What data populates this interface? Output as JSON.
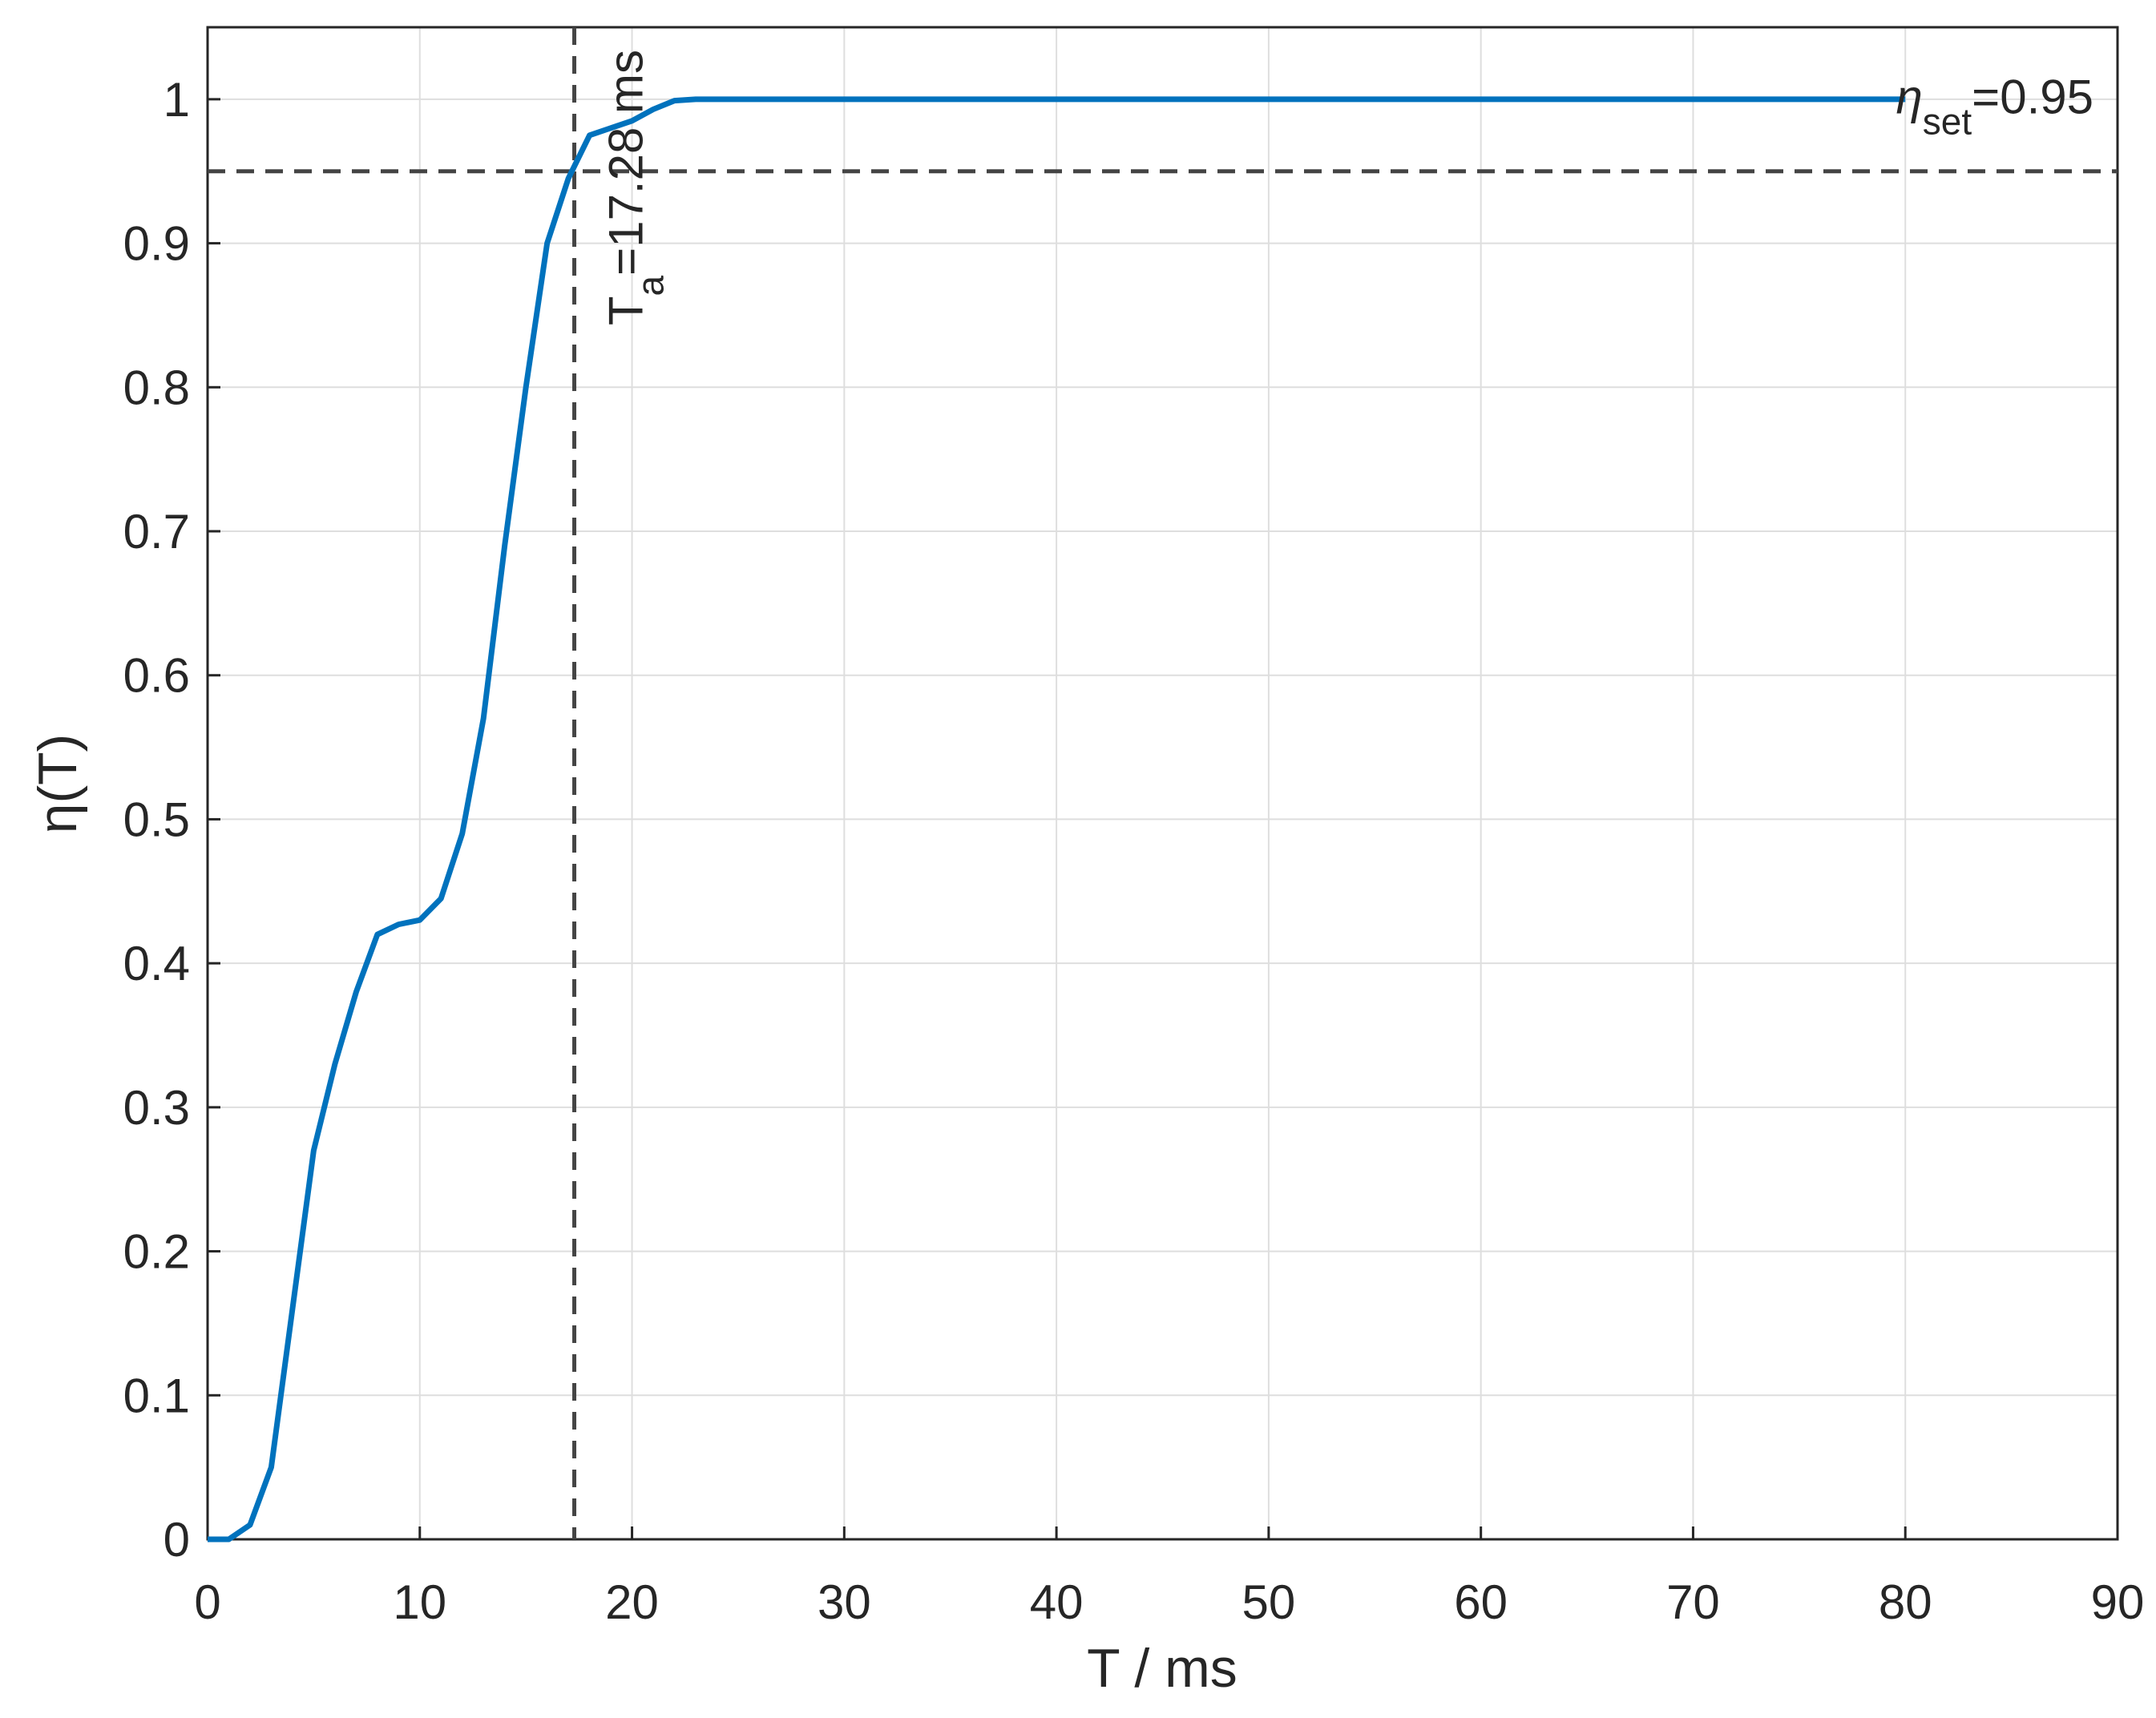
{
  "chart_data": {
    "type": "line",
    "x_label": "T / ms",
    "y_label": "η(T)",
    "x": [
      0,
      1,
      2,
      3,
      4,
      5,
      6,
      7,
      8,
      9,
      10,
      11,
      12,
      13,
      14,
      15,
      16,
      17,
      18,
      19,
      20,
      21,
      22,
      23,
      30,
      40,
      50,
      60,
      70,
      80
    ],
    "series": [
      {
        "color": "#0072bd",
        "values": [
          0,
          0.0,
          0.01,
          0.05,
          0.16,
          0.27,
          0.33,
          0.38,
          0.42,
          0.427,
          0.43,
          0.445,
          0.49,
          0.57,
          0.69,
          0.8,
          0.9,
          0.945,
          0.975,
          0.98,
          0.985,
          0.993,
          0.999,
          1,
          1,
          1,
          1,
          1,
          1,
          1
        ]
      }
    ],
    "xlim": [
      0,
      90
    ],
    "xticks": [
      0,
      10,
      20,
      30,
      40,
      50,
      60,
      70,
      80,
      90
    ],
    "ylim": [
      0,
      1.05
    ],
    "yticks": [
      0,
      0.1,
      0.2,
      0.3,
      0.4,
      0.5,
      0.6,
      0.7,
      0.8,
      0.9,
      1
    ],
    "grid": true,
    "vline": {
      "x": 17.28,
      "text": "T",
      "sub": "a",
      "suffix": "=17.28 ms"
    },
    "hline": {
      "y": 0.95,
      "text": "η",
      "sub": "set",
      "suffix": "=0.95"
    }
  }
}
